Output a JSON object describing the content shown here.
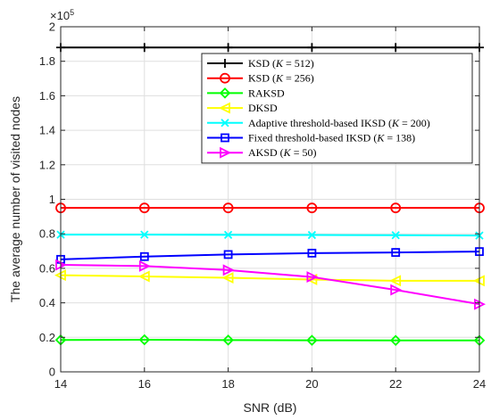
{
  "chart_data": {
    "type": "line",
    "xlabel": "SNR (dB)",
    "ylabel": "The average number of visited nodes",
    "xlim": [
      14,
      24
    ],
    "ylim": [
      0,
      2.0
    ],
    "y_multiplier_label": "×10",
    "y_multiplier_exponent": "5",
    "x_ticks": [
      "14",
      "16",
      "18",
      "20",
      "22",
      "24"
    ],
    "y_ticks": [
      "0",
      "0.2",
      "0.4",
      "0.6",
      "0.8",
      "1",
      "1.2",
      "1.4",
      "1.6",
      "1.8",
      "2"
    ],
    "grid": true,
    "legend_position": "top-right",
    "x": [
      14,
      16,
      18,
      20,
      22,
      24
    ],
    "series": [
      {
        "name_parts": [
          "KSD (",
          "K",
          " = 512)"
        ],
        "color": "#000000",
        "marker": "plus",
        "values": [
          1.88,
          1.88,
          1.88,
          1.88,
          1.88,
          1.88
        ]
      },
      {
        "name_parts": [
          "KSD (",
          "K",
          " = 256)"
        ],
        "color": "#ff0000",
        "marker": "circle",
        "values": [
          0.95,
          0.95,
          0.95,
          0.95,
          0.95,
          0.95
        ]
      },
      {
        "name_parts": [
          "RAKSD",
          "",
          ""
        ],
        "color": "#00ff00",
        "marker": "diamond",
        "values": [
          0.185,
          0.186,
          0.184,
          0.183,
          0.182,
          0.182
        ]
      },
      {
        "name_parts": [
          "DKSD",
          "",
          ""
        ],
        "color": "#ffff00",
        "marker": "triangle-left",
        "values": [
          0.56,
          0.553,
          0.545,
          0.535,
          0.528,
          0.528
        ]
      },
      {
        "name_parts": [
          "Adaptive threshold-based IKSD (",
          "K",
          " = 200)"
        ],
        "color": "#00ffff",
        "marker": "x",
        "values": [
          0.795,
          0.795,
          0.794,
          0.793,
          0.792,
          0.79
        ]
      },
      {
        "name_parts": [
          "Fixed threshold-based IKSD (",
          "K",
          " = 138)"
        ],
        "color": "#0000ff",
        "marker": "square",
        "values": [
          0.652,
          0.668,
          0.68,
          0.688,
          0.692,
          0.697
        ]
      },
      {
        "name_parts": [
          "AKSD (",
          "K",
          " = 50)"
        ],
        "color": "#ff00ff",
        "marker": "triangle-right",
        "values": [
          0.62,
          0.613,
          0.59,
          0.55,
          0.475,
          0.392
        ]
      }
    ]
  }
}
